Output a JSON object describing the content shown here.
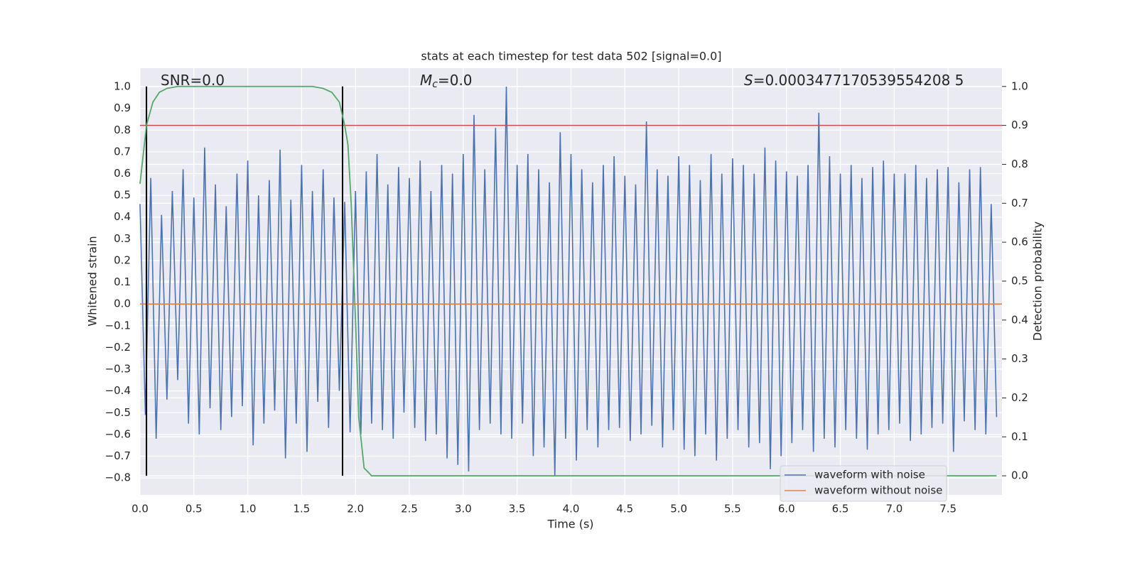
{
  "chart_data": {
    "type": "line",
    "title": "stats at each timestep for test data 502 [signal=0.0]",
    "xlabel": "Time (s)",
    "ylabel": "Whitened strain",
    "y2label": "Detection probability",
    "annotations": [
      {
        "text": "SNR=0.0"
      },
      {
        "symbol": "M",
        "subscript": "c",
        "text": "=0.0"
      },
      {
        "symbol": "S",
        "text": "=0.0003477170539554208 5"
      }
    ],
    "xlim": [
      0,
      8.0
    ],
    "ylim": [
      -0.878,
      1.085
    ],
    "y2lim": [
      -0.049,
      1.047
    ],
    "xticks": [
      {
        "value": 0,
        "label": "0.0"
      },
      0.5,
      {
        "value": 1,
        "label": "1.0"
      },
      1.5,
      {
        "value": 2,
        "label": "2.0"
      },
      2.5,
      {
        "value": 3,
        "label": "3.0"
      },
      3.5,
      {
        "value": 4,
        "label": "4.0"
      },
      4.5,
      {
        "value": 5,
        "label": "5.0"
      },
      5.5,
      {
        "value": 6,
        "label": "6.0"
      },
      6.5,
      {
        "value": 7,
        "label": "7.0"
      },
      7.5
    ],
    "yticks": [
      {
        "value": -0.8,
        "label": "−0.8"
      },
      {
        "value": -0.7,
        "label": "−0.7"
      },
      {
        "value": -0.6,
        "label": "−0.6"
      },
      {
        "value": -0.5,
        "label": "−0.5"
      },
      {
        "value": -0.4,
        "label": "−0.4"
      },
      {
        "value": -0.3,
        "label": "−0.3"
      },
      {
        "value": -0.2,
        "label": "−0.2"
      },
      {
        "value": -0.1,
        "label": "−0.1"
      },
      {
        "value": 0,
        "label": "0.0"
      },
      0.1,
      0.2,
      0.3,
      0.4,
      0.5,
      0.6,
      0.7,
      0.8,
      0.9,
      {
        "value": 1,
        "label": "1.0"
      }
    ],
    "y2ticks": [
      {
        "value": 0,
        "label": "0.0"
      },
      0.1,
      0.2,
      0.3,
      0.4,
      0.5,
      0.6,
      0.7,
      0.8,
      0.9,
      {
        "value": 1,
        "label": "1.0"
      }
    ],
    "grid": true,
    "legend": "lower right",
    "series": [
      {
        "name": "waveform with noise",
        "color": "#4c72b0",
        "x": [
          0,
          0.05,
          0.1,
          0.15,
          0.2,
          0.25,
          0.3,
          0.35,
          0.4,
          0.45,
          0.5,
          0.55,
          0.6,
          0.65,
          0.7,
          0.75,
          0.8,
          0.85,
          0.9,
          0.95,
          1,
          1.05,
          1.1,
          1.15,
          1.2,
          1.25,
          1.3,
          1.35,
          1.4,
          1.45,
          1.5,
          1.55,
          1.6,
          1.65,
          1.7,
          1.75,
          1.8,
          1.85,
          1.9,
          1.95,
          2,
          2.05,
          2.1,
          2.15,
          2.2,
          2.25,
          2.3,
          2.35,
          2.4,
          2.45,
          2.5,
          2.55,
          2.6,
          2.65,
          2.7,
          2.75,
          2.8,
          2.85,
          2.9,
          2.95,
          3,
          3.05,
          3.1,
          3.15,
          3.2,
          3.25,
          3.3,
          3.35,
          3.4,
          3.45,
          3.5,
          3.55,
          3.6,
          3.65,
          3.7,
          3.75,
          3.8,
          3.85,
          3.9,
          3.95,
          4,
          4.05,
          4.1,
          4.15,
          4.2,
          4.25,
          4.3,
          4.35,
          4.4,
          4.45,
          4.5,
          4.55,
          4.6,
          4.65,
          4.7,
          4.75,
          4.8,
          4.85,
          4.9,
          4.95,
          5,
          5.05,
          5.1,
          5.15,
          5.2,
          5.25,
          5.3,
          5.35,
          5.4,
          5.45,
          5.5,
          5.55,
          5.6,
          5.65,
          5.7,
          5.75,
          5.8,
          5.85,
          5.9,
          5.95,
          6,
          6.05,
          6.1,
          6.15,
          6.2,
          6.25,
          6.3,
          6.35,
          6.4,
          6.45,
          6.5,
          6.55,
          6.6,
          6.65,
          6.7,
          6.75,
          6.8,
          6.85,
          6.9,
          6.95,
          7,
          7.05,
          7.1,
          7.15,
          7.2,
          7.25,
          7.3,
          7.35,
          7.4,
          7.45,
          7.5,
          7.55,
          7.6,
          7.65,
          7.7,
          7.75,
          7.8,
          7.85,
          7.9,
          7.95
        ],
        "values": [
          0.46,
          -0.51,
          0.58,
          -0.62,
          0.41,
          -0.44,
          0.52,
          -0.35,
          0.62,
          -0.55,
          0.49,
          -0.6,
          0.72,
          -0.48,
          0.55,
          -0.58,
          0.45,
          -0.52,
          0.6,
          -0.47,
          0.66,
          -0.65,
          0.5,
          -0.55,
          0.57,
          -0.49,
          0.71,
          -0.71,
          0.48,
          -0.55,
          0.64,
          -0.68,
          0.52,
          -0.45,
          0.62,
          -0.57,
          0.49,
          -0.4,
          0.47,
          -0.59,
          0.52,
          -0.6,
          0.61,
          -0.55,
          0.69,
          -0.58,
          0.55,
          -0.62,
          0.63,
          -0.5,
          0.58,
          -0.57,
          0.66,
          -0.63,
          0.52,
          -0.6,
          0.64,
          -0.71,
          0.6,
          -0.74,
          0.69,
          -0.77,
          0.87,
          -0.58,
          0.62,
          -0.55,
          0.81,
          -0.6,
          1.0,
          -0.62,
          0.64,
          -0.55,
          0.69,
          -0.7,
          0.62,
          -0.66,
          0.56,
          -0.79,
          0.79,
          -0.62,
          0.69,
          -0.72,
          0.62,
          -0.58,
          0.56,
          -0.66,
          0.64,
          -0.58,
          0.68,
          -0.57,
          0.59,
          -0.63,
          0.55,
          -0.6,
          0.84,
          -0.56,
          0.62,
          -0.66,
          0.59,
          -0.58,
          0.68,
          -0.67,
          0.64,
          -0.7,
          0.57,
          -0.6,
          0.69,
          -0.72,
          0.6,
          -0.62,
          0.67,
          -0.58,
          0.64,
          -0.66,
          0.6,
          -0.64,
          0.72,
          -0.76,
          0.66,
          -0.7,
          0.61,
          -0.64,
          0.59,
          -0.58,
          0.64,
          -0.68,
          0.88,
          -0.62,
          0.68,
          -0.66,
          0.6,
          -0.58,
          0.64,
          -0.62,
          0.58,
          -0.67,
          0.63,
          -0.6,
          0.66,
          -0.58,
          0.6,
          -0.55,
          0.6,
          -0.63,
          0.64,
          -0.6,
          0.58,
          -0.57,
          0.62,
          -0.55,
          0.63,
          -0.68,
          0.56,
          -0.54,
          0.62,
          -0.58,
          0.63,
          -0.6,
          0.46,
          -0.52
        ]
      },
      {
        "name": "waveform without noise",
        "color": "#dd8452",
        "x": [
          0,
          8.0
        ],
        "values": [
          0,
          0
        ]
      }
    ],
    "probability": {
      "color": "#55a868",
      "axis": "y2",
      "x": [
        0,
        0.06,
        0.12,
        0.18,
        0.25,
        0.35,
        0.6,
        1.0,
        1.4,
        1.6,
        1.7,
        1.78,
        1.85,
        1.9,
        1.93,
        1.96,
        2.0,
        2.03,
        2.08,
        2.15,
        7.95
      ],
      "values": [
        0.75,
        0.9,
        0.96,
        0.985,
        0.995,
        1.0,
        1.0,
        1.0,
        1.0,
        1.0,
        0.995,
        0.985,
        0.96,
        0.9,
        0.85,
        0.7,
        0.4,
        0.15,
        0.02,
        0.0,
        0.0
      ]
    },
    "threshold": {
      "value": 0.9,
      "axis": "y2",
      "color": "#c44e52"
    },
    "vlines": {
      "x": [
        0.06,
        1.88
      ],
      "ymin": 0,
      "ymax": 1,
      "axis": "y2",
      "color": "#000000"
    }
  }
}
